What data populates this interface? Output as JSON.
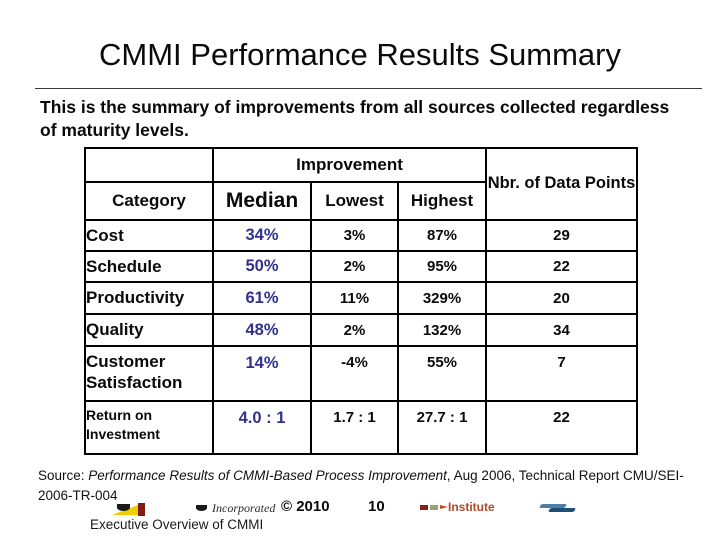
{
  "slide": {
    "title": "CMMI Performance Results Summary",
    "intro": "This is the summary of improvements from all sources collected regardless of maturity levels."
  },
  "table": {
    "header": {
      "category": "Category",
      "improvement": "Improvement",
      "median": "Median",
      "lowest": "Lowest",
      "highest": "Highest",
      "nbr_points": "Nbr. of Data Points"
    },
    "rows": [
      {
        "category": "Cost",
        "median": "34%",
        "lowest": "3%",
        "highest": "87%",
        "points": "29"
      },
      {
        "category": "Schedule",
        "median": "50%",
        "lowest": "2%",
        "highest": "95%",
        "points": "22"
      },
      {
        "category": "Productivity",
        "median": "61%",
        "lowest": "11%",
        "highest": "329%",
        "points": "20"
      },
      {
        "category": "Quality",
        "median": "48%",
        "lowest": "2%",
        "highest": "132%",
        "points": "34"
      },
      {
        "category": "Customer Satisfaction",
        "median": "14%",
        "lowest": "-4%",
        "highest": "55%",
        "points": "7"
      },
      {
        "category": "Return on Investment",
        "median": "4.0 : 1",
        "lowest": "1.7 : 1",
        "highest": "27.7 : 1",
        "points": "22"
      }
    ]
  },
  "footer": {
    "source_prefix": "Source: ",
    "source_title_italic": "Performance Results of CMMI-Based Process Improvement",
    "source_mid": ", Aug 2006, Technical Report CMU/SEI-",
    "source_tail": "2006-TR-004",
    "incorporated_label": "Incorporated",
    "copyright": "© 2010",
    "page_number": "10",
    "institute_label": "Institute",
    "exec_overview": "Executive Overview of CMMI"
  },
  "colors": {
    "median_accent": "#32318e",
    "institute_red": "#b34a28",
    "pennant_yellow": "#f0cd00",
    "pennant_maroon": "#7e1f10",
    "swoosh_blue_light": "#4d7fa6",
    "swoosh_blue_dark": "#1d4e79"
  }
}
